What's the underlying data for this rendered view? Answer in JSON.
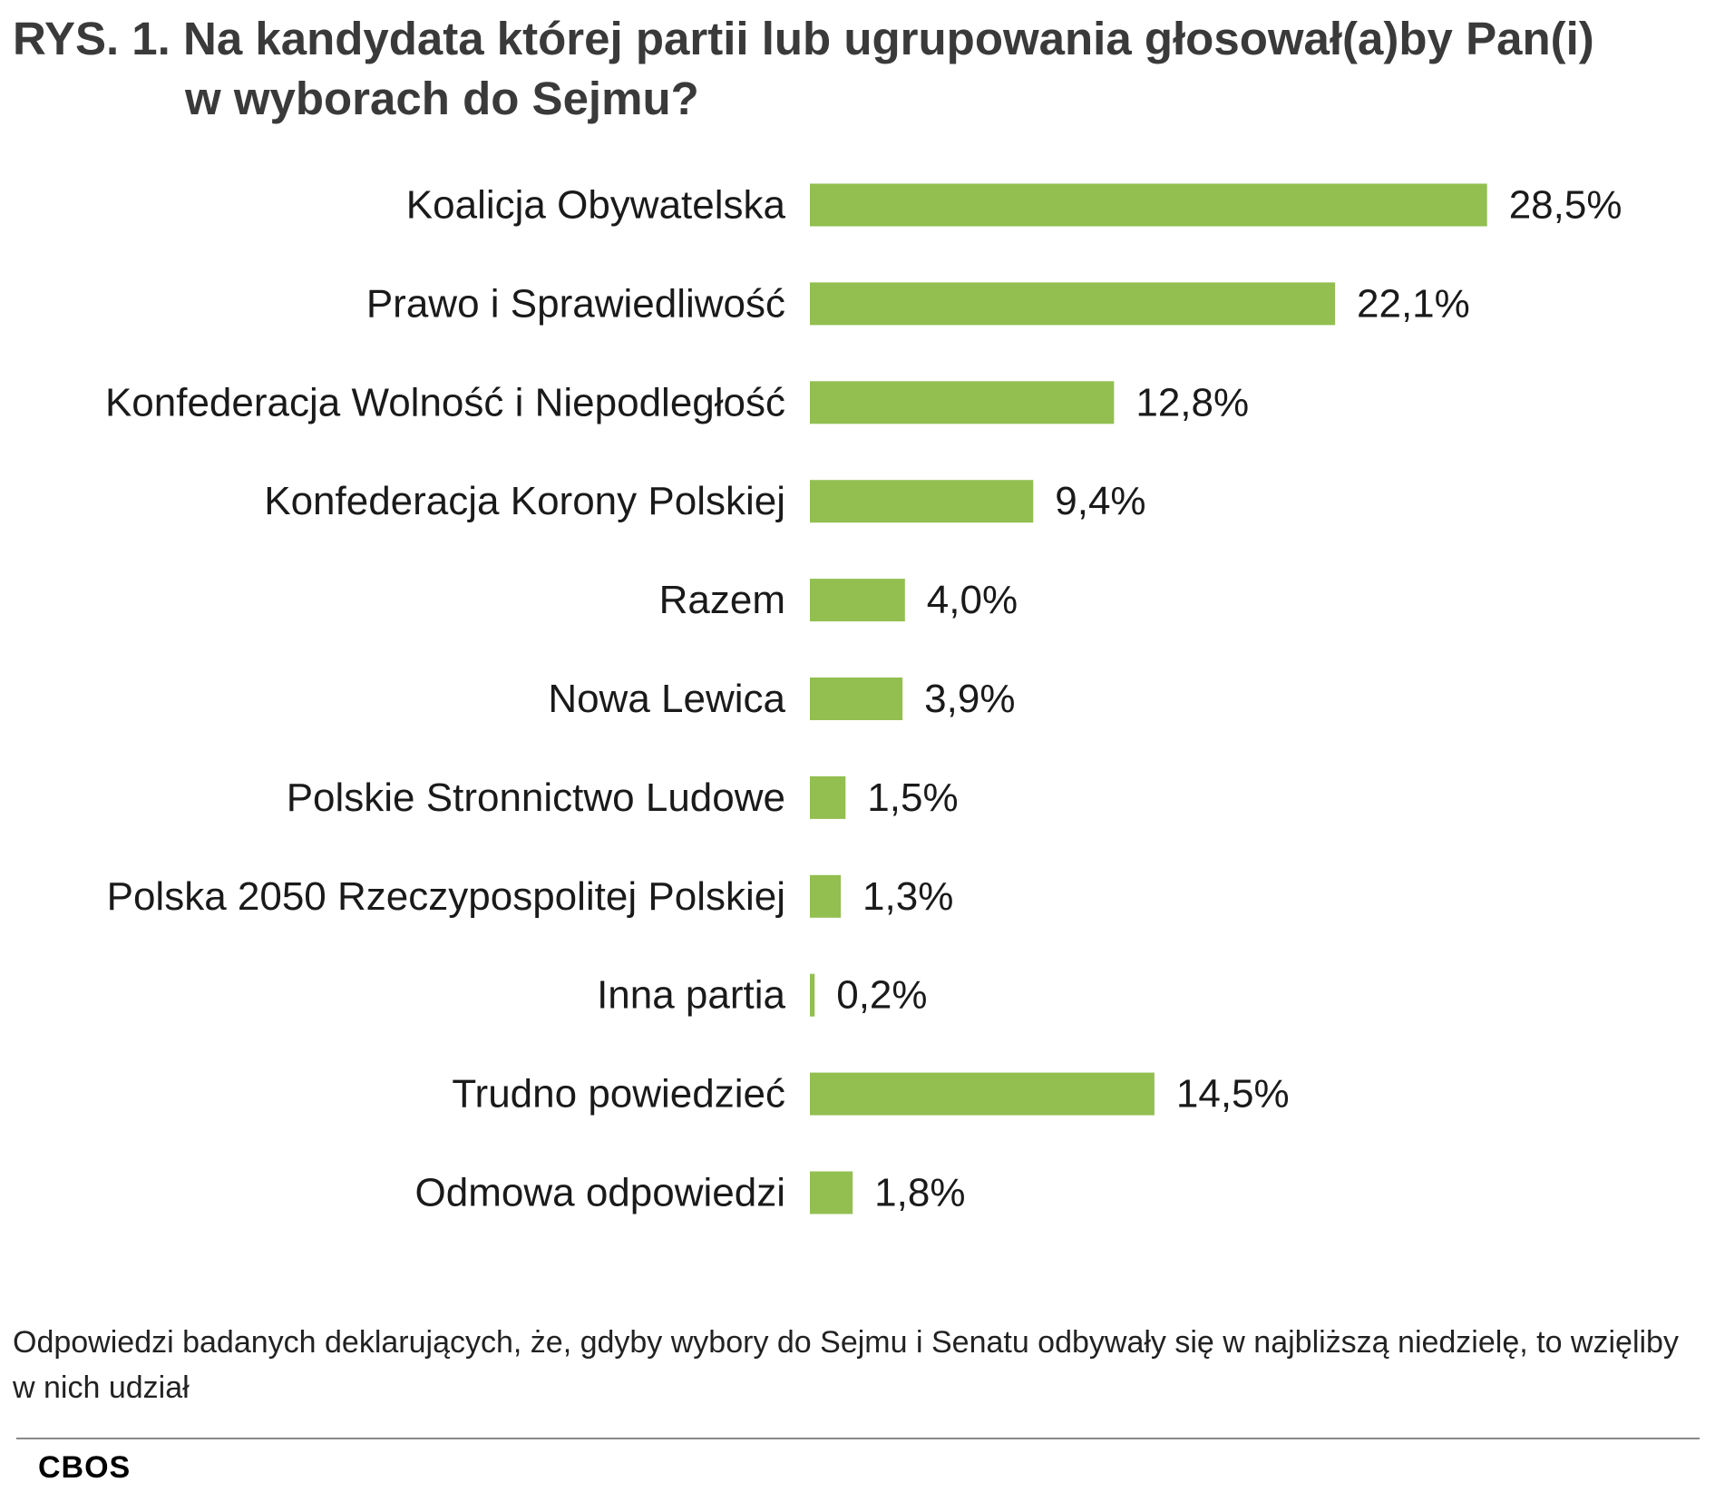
{
  "title_line1": "RYS. 1. Na kandydata której partii lub ugrupowania głosował(a)by Pan(i)",
  "title_line2": "w wyborach do Sejmu?",
  "note": "Odpowiedzi badanych deklarujących, że, gdyby wybory do Sejmu i Senatu odbywały się w najbliższą niedzielę, to wzięliby w nich udział",
  "source": "CBOS",
  "colors": {
    "bar": "#92bf50"
  },
  "chart_data": {
    "type": "bar",
    "orientation": "horizontal",
    "categories": [
      "Koalicja Obywatelska",
      "Prawo i Sprawiedliwość",
      "Konfederacja Wolność i Niepodległość",
      "Konfederacja Korony Polskiej",
      "Razem",
      "Nowa Lewica",
      "Polskie Stronnictwo Ludowe",
      "Polska 2050 Rzeczypospolitej Polskiej",
      "Inna partia",
      "Trudno powiedzieć",
      "Odmowa odpowiedzi"
    ],
    "values": [
      28.5,
      22.1,
      12.8,
      9.4,
      4.0,
      3.9,
      1.5,
      1.3,
      0.2,
      14.5,
      1.8
    ],
    "value_labels": [
      "28,5%",
      "22,1%",
      "12,8%",
      "9,4%",
      "4,0%",
      "3,9%",
      "1,5%",
      "1,3%",
      "0,2%",
      "14,5%",
      "1,8%"
    ],
    "title": "RYS. 1. Na kandydata której partii lub ugrupowania głosował(a)by Pan(i) w wyborach do Sejmu?",
    "xlabel": "",
    "ylabel": "",
    "unit": "%",
    "grid": false,
    "legend": "none"
  }
}
